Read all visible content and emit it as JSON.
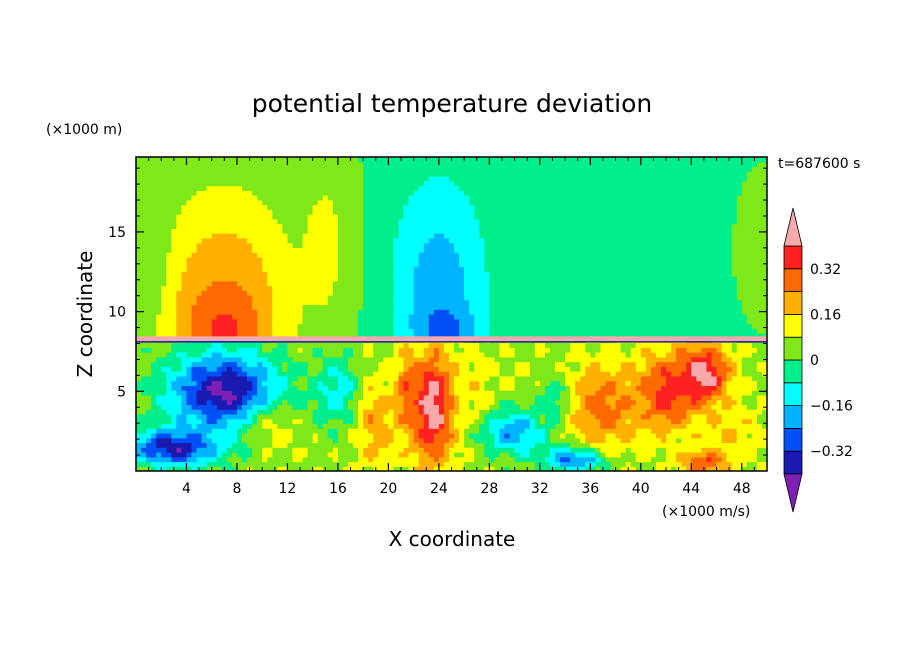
{
  "chart_data": {
    "type": "heatmap",
    "title": "potential temperature deviation",
    "xlabel": "X coordinate",
    "ylabel": "Z coordinate",
    "x_unit": "(×1000 m/s)",
    "y_unit": "(×1000 m)",
    "time_label": "t=687600 s",
    "xlim": [
      0,
      50
    ],
    "ylim": [
      0,
      19.7
    ],
    "x_ticks": [
      4,
      8,
      12,
      16,
      20,
      24,
      28,
      32,
      36,
      40,
      44,
      48
    ],
    "y_ticks": [
      5,
      10,
      15
    ],
    "colorbar": {
      "tick_labels": [
        "0.32",
        "0.16",
        "0",
        "−0.16",
        "−0.32"
      ],
      "tick_values": [
        0.32,
        0.16,
        0,
        -0.16,
        -0.32
      ],
      "levels": [
        -0.4,
        -0.32,
        -0.24,
        -0.16,
        -0.08,
        0,
        0.08,
        0.16,
        0.24,
        0.32,
        0.4
      ],
      "colors": [
        "#7f1fb4",
        "#1a1ab0",
        "#0050f5",
        "#00b4ff",
        "#00ffff",
        "#00ee8c",
        "#7fe81a",
        "#ffff00",
        "#ffb000",
        "#ff6a00",
        "#ff2020",
        "#f8aaaa"
      ]
    },
    "fields": {
      "upper_layer": [
        {
          "cx": 7,
          "cz": 11,
          "rx": 7.5,
          "rz": 10,
          "value": 0.2
        },
        {
          "cx": 7,
          "cz": 9.5,
          "rx": 4.5,
          "rz": 4.5,
          "value": 0.26
        },
        {
          "cx": 7,
          "cz": 8.8,
          "rx": 2.8,
          "rz": 2.3,
          "value": 0.34
        },
        {
          "cx": 15,
          "cz": 14,
          "rx": 3.5,
          "rz": 9,
          "value": 0.1
        },
        {
          "cx": 24,
          "cz": 12,
          "rx": 5.5,
          "rz": 9.5,
          "value": -0.12
        },
        {
          "cx": 24,
          "cz": 11,
          "rx": 3.2,
          "rz": 6,
          "value": -0.21
        },
        {
          "cx": 24.5,
          "cz": 9,
          "rx": 2.6,
          "rz": 1.6,
          "value": -0.28
        },
        {
          "cx": 49.5,
          "cz": 14,
          "rx": 2.5,
          "rz": 6,
          "value": 0.05
        },
        {
          "cx": 1,
          "cz": 14,
          "rx": 2,
          "rz": 6,
          "value": 0.04
        }
      ],
      "lower_layer": [
        {
          "cx": 7,
          "cz": 5,
          "rx": 5.5,
          "rz": 3.2,
          "value": -0.42
        },
        {
          "cx": 3,
          "cz": 1.5,
          "rx": 4.5,
          "rz": 1.5,
          "value": -0.38
        },
        {
          "cx": 11,
          "cz": 2.5,
          "rx": 3.0,
          "rz": 2.0,
          "value": 0.1
        },
        {
          "cx": 16,
          "cz": 5,
          "rx": 2.5,
          "rz": 2.8,
          "value": -0.12
        },
        {
          "cx": 19,
          "cz": 3,
          "rx": 2.0,
          "rz": 3.5,
          "value": 0.22
        },
        {
          "cx": 23.5,
          "cz": 4,
          "rx": 2.3,
          "rz": 4.5,
          "value": 0.45
        },
        {
          "cx": 21.5,
          "cz": 5,
          "rx": 1.0,
          "rz": 3,
          "value": 0.3
        },
        {
          "cx": 27,
          "cz": 5,
          "rx": 2,
          "rz": 3,
          "value": 0.14
        },
        {
          "cx": 30,
          "cz": 2.5,
          "rx": 3.2,
          "rz": 1.8,
          "value": -0.22
        },
        {
          "cx": 31,
          "cz": 6,
          "rx": 3,
          "rz": 1.5,
          "value": 0.08
        },
        {
          "cx": 35,
          "cz": 0.8,
          "rx": 3,
          "rz": 1,
          "value": -0.35
        },
        {
          "cx": 37,
          "cz": 4,
          "rx": 3.5,
          "rz": 3.5,
          "value": 0.28
        },
        {
          "cx": 42,
          "cz": 5,
          "rx": 3,
          "rz": 3,
          "value": 0.36
        },
        {
          "cx": 45,
          "cz": 6,
          "rx": 2.5,
          "rz": 2.5,
          "value": 0.45
        },
        {
          "cx": 47,
          "cz": 2.5,
          "rx": 3,
          "rz": 2.5,
          "value": 0.16
        },
        {
          "cx": 45,
          "cz": 0.6,
          "rx": 2.5,
          "rz": 0.9,
          "value": 0.32
        },
        {
          "cx": 33,
          "cz": 4.5,
          "rx": 1.5,
          "rz": 2,
          "value": -0.06
        }
      ],
      "base_upper": -0.02,
      "base_lower": 0.06,
      "boundary_z": 8.3
    }
  }
}
